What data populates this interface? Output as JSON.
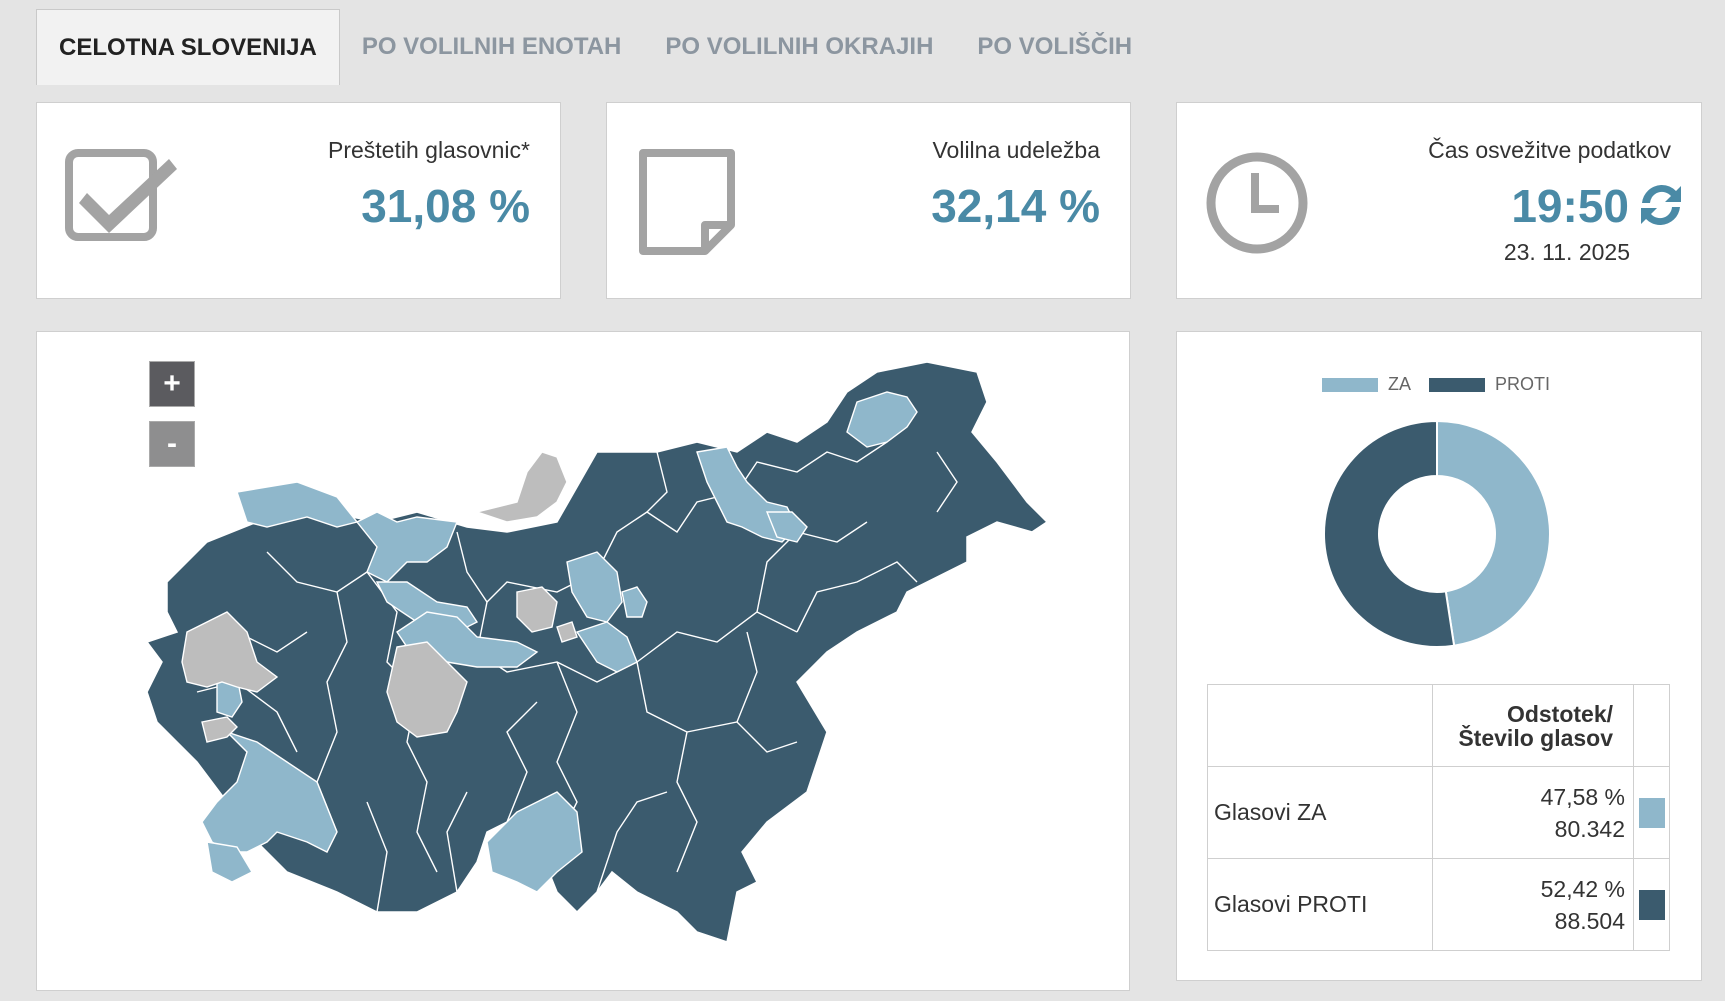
{
  "tabs": [
    {
      "label": "CELOTNA SLOVENIJA",
      "active": true
    },
    {
      "label": "PO VOLILNIH ENOTAH",
      "active": false
    },
    {
      "label": "PO VOLILNIH OKRAJIH",
      "active": false
    },
    {
      "label": "PO VOLIŠČIH",
      "active": false
    }
  ],
  "stats": {
    "ballots": {
      "label": "Preštetih glasovnic*",
      "value": "31,08 %",
      "icon": "checkbox-icon"
    },
    "turnout": {
      "label": "Volilna udeležba",
      "value": "32,14 %",
      "icon": "ballot-paper-icon"
    },
    "refresh": {
      "label": "Čas osvežitve podatkov",
      "time": "19:50",
      "date": "23. 11. 2025",
      "icon": "clock-icon",
      "button_icon": "refresh-icon"
    }
  },
  "map": {
    "zoom_in_label": "+",
    "zoom_out_label": "-",
    "colors": {
      "za": "#8fb7cb",
      "proti": "#3b5b6e",
      "none": "#bdbdbd"
    }
  },
  "chart_data": {
    "type": "pie",
    "donut": true,
    "legend_position": "top",
    "series": [
      {
        "name": "ZA",
        "value": 47.58,
        "color": "#8fb7cb"
      },
      {
        "name": "PROTI",
        "value": 52.42,
        "color": "#3b5b6e"
      }
    ]
  },
  "results_table": {
    "header": "Odstotek/\nŠtevilo glasov",
    "rows": [
      {
        "label": "Glasovi ZA",
        "percent": "47,58 %",
        "count": "80.342",
        "color": "#8fb7cb"
      },
      {
        "label": "Glasovi PROTI",
        "percent": "52,42 %",
        "count": "88.504",
        "color": "#3b5b6e"
      }
    ]
  }
}
